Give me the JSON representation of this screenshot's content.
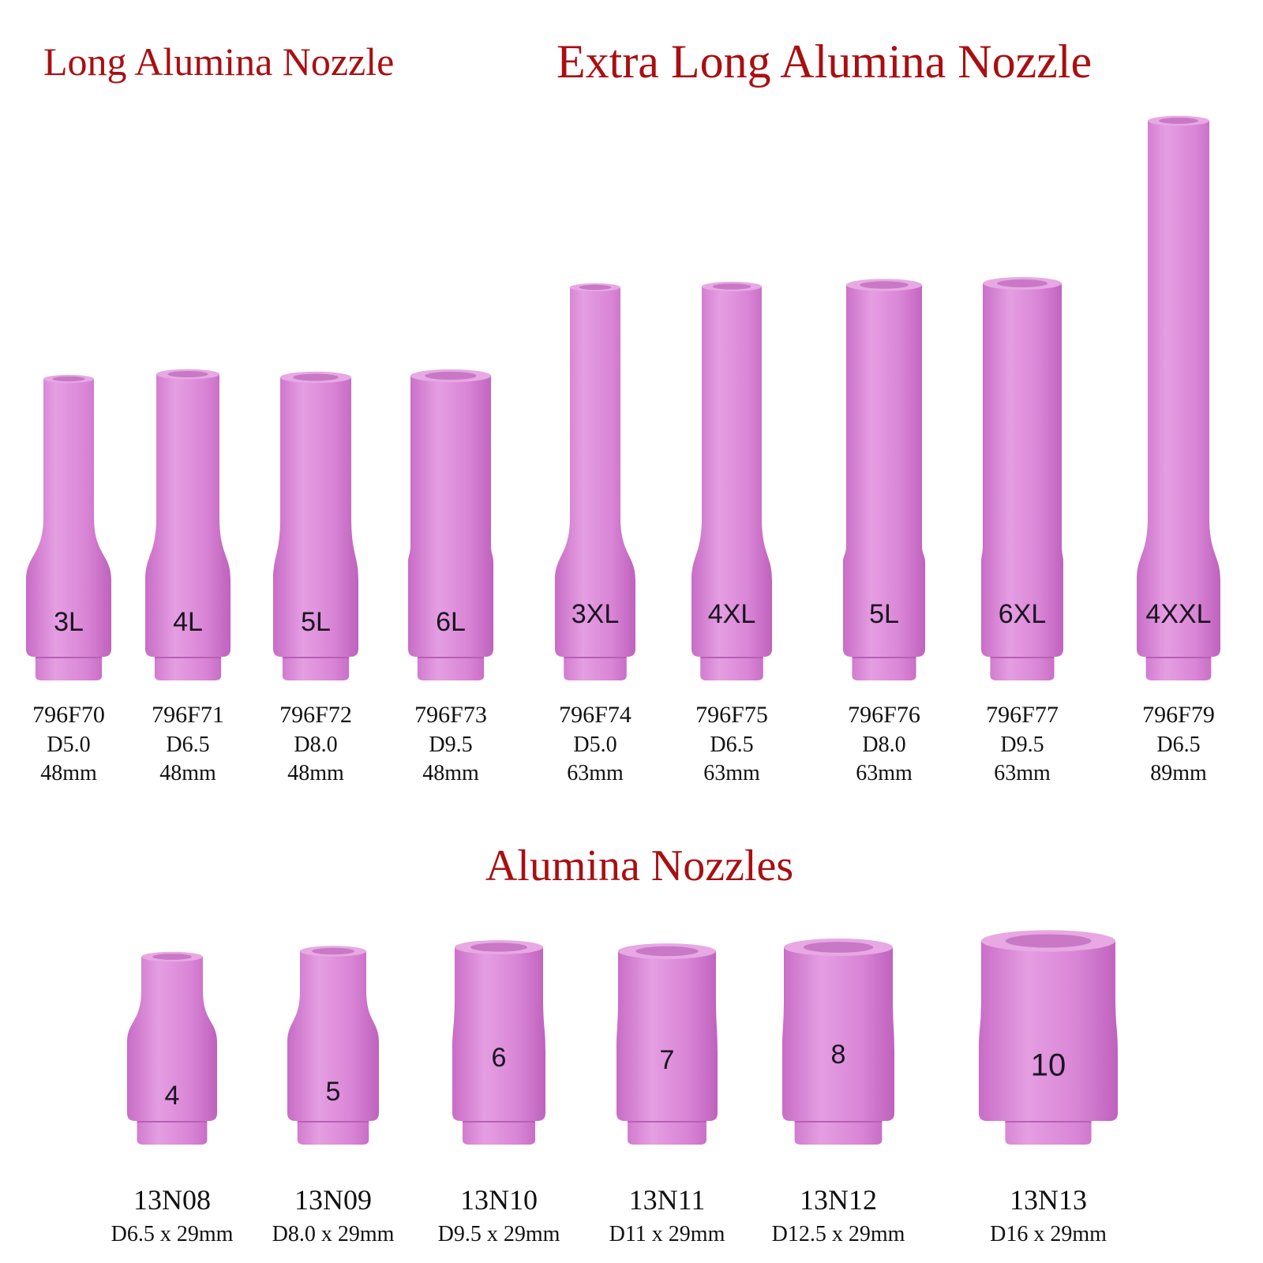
{
  "headings": [
    "Long Alumina Nozzle",
    "Extra Long Alumina Nozzle",
    "Alumina Nozzles"
  ],
  "long_nozzles": [
    {
      "mark": "3L",
      "part": "796F70",
      "diameter": "D5.0",
      "length": "48mm"
    },
    {
      "mark": "4L",
      "part": "796F71",
      "diameter": "D6.5",
      "length": "48mm"
    },
    {
      "mark": "5L",
      "part": "796F72",
      "diameter": "D8.0",
      "length": "48mm"
    },
    {
      "mark": "6L",
      "part": "796F73",
      "diameter": "D9.5",
      "length": "48mm"
    },
    {
      "mark": "3XL",
      "part": "796F74",
      "diameter": "D5.0",
      "length": "63mm"
    },
    {
      "mark": "4XL",
      "part": "796F75",
      "diameter": "D6.5",
      "length": "63mm"
    },
    {
      "mark": "5L",
      "part": "796F76",
      "diameter": "D8.0",
      "length": "63mm"
    },
    {
      "mark": "6XL",
      "part": "796F77",
      "diameter": "D9.5",
      "length": "63mm"
    },
    {
      "mark": "4XXL",
      "part": "796F79",
      "diameter": "D6.5",
      "length": "89mm"
    }
  ],
  "short_nozzles": [
    {
      "mark": "4",
      "part": "13N08",
      "spec": "D6.5 x 29mm"
    },
    {
      "mark": "5",
      "part": "13N09",
      "spec": "D8.0 x 29mm"
    },
    {
      "mark": "6",
      "part": "13N10",
      "spec": "D9.5 x 29mm"
    },
    {
      "mark": "7",
      "part": "13N11",
      "spec": "D11 x 29mm"
    },
    {
      "mark": "8",
      "part": "13N12",
      "spec": "D12.5 x 29mm"
    },
    {
      "mark": "10",
      "part": "13N13",
      "spec": "D16 x 29mm"
    }
  ]
}
